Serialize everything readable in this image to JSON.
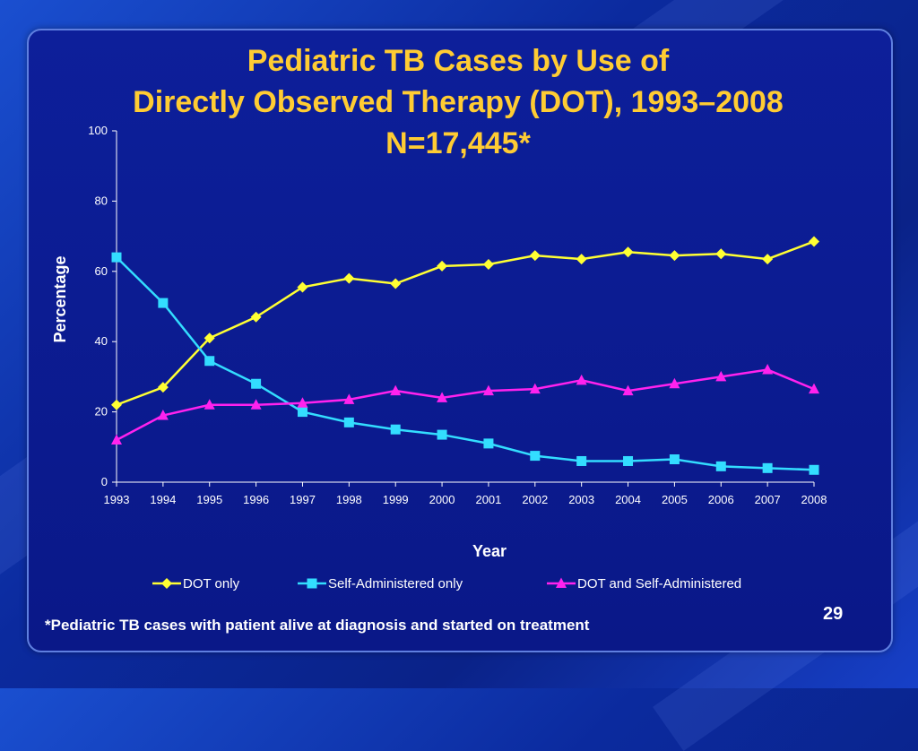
{
  "slide": {
    "title_line1": "Pediatric TB Cases by Use of",
    "title_line2": "Directly Observed Therapy (DOT), 1993–2008",
    "title_line3": "N=17,445*",
    "footnote": "*Pediatric TB cases with patient alive at diagnosis and started on treatment",
    "page_number": "29"
  },
  "colors": {
    "title": "#ffcc33",
    "dot_only": "#ffff33",
    "self_admin": "#33ddff",
    "dot_and_self": "#ff22ee"
  },
  "chart_data": {
    "type": "line",
    "title": "Pediatric TB Cases by Use of Directly Observed Therapy (DOT), 1993–2008",
    "xlabel": "Year",
    "ylabel": "Percentage",
    "ylim": [
      0,
      100
    ],
    "yticks": [
      "0",
      "20",
      "40",
      "60",
      "80",
      "100"
    ],
    "categories": [
      "1993",
      "1994",
      "1995",
      "1996",
      "1997",
      "1998",
      "1999",
      "2000",
      "2001",
      "2002",
      "2003",
      "2004",
      "2005",
      "2006",
      "2007",
      "2008"
    ],
    "legend_position": "bottom",
    "series": [
      {
        "name": "DOT only",
        "marker": "diamond",
        "values": [
          22,
          27,
          41,
          47,
          55.5,
          58,
          56.5,
          61.5,
          62,
          64.5,
          63.5,
          65.5,
          64.5,
          65,
          63.5,
          68.5
        ]
      },
      {
        "name": "Self-Administered only",
        "marker": "square",
        "values": [
          64,
          51,
          34.5,
          28,
          20,
          17,
          15,
          13.5,
          11,
          7.5,
          6,
          6,
          6.5,
          4.5,
          4,
          3.5
        ]
      },
      {
        "name": "DOT and Self-Administered",
        "marker": "triangle",
        "values": [
          12,
          19,
          22,
          22,
          22.5,
          23.5,
          26,
          24,
          26,
          26.5,
          29,
          26,
          28,
          30,
          32,
          26.5
        ]
      }
    ]
  }
}
